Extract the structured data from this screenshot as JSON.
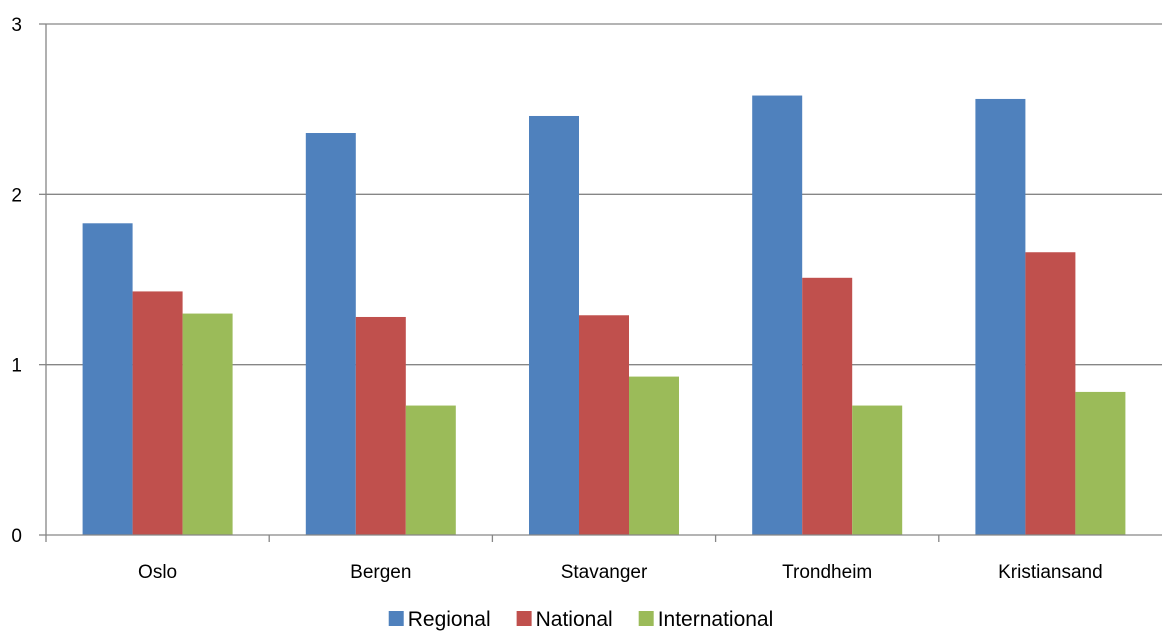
{
  "chart_data": {
    "type": "bar",
    "categories": [
      "Oslo",
      "Bergen",
      "Stavanger",
      "Trondheim",
      "Kristiansand"
    ],
    "series": [
      {
        "name": "Regional",
        "color": "#4F81BD",
        "values": [
          1.83,
          2.36,
          2.46,
          2.58,
          2.56
        ]
      },
      {
        "name": "National",
        "color": "#C0504D",
        "values": [
          1.43,
          1.28,
          1.29,
          1.51,
          1.66
        ]
      },
      {
        "name": "International",
        "color": "#9BBB59",
        "values": [
          1.3,
          0.76,
          0.93,
          0.76,
          0.84
        ]
      }
    ],
    "ylim": [
      0,
      3
    ],
    "yticks": [
      "0",
      "1",
      "2",
      "3"
    ],
    "grid": true,
    "legend_position": "bottom"
  }
}
